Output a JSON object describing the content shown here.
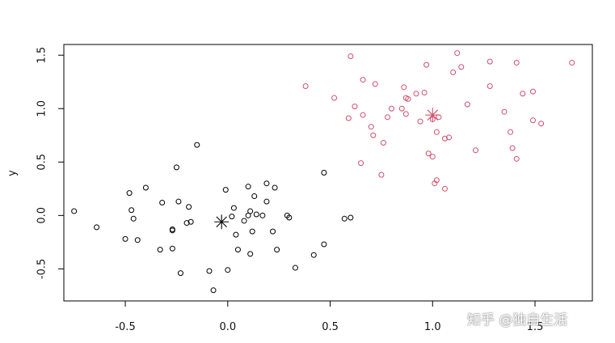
{
  "chart_data": {
    "type": "scatter",
    "title": "",
    "xlabel": "",
    "ylabel": "y",
    "xlim": [
      -0.8,
      1.78
    ],
    "ylim": [
      -0.8,
      1.6
    ],
    "x_ticks": [
      -0.5,
      0.0,
      0.5,
      1.0,
      1.5
    ],
    "x_tick_labels": [
      "-0.5",
      "0.0",
      "0.5",
      "1.0",
      "1.5"
    ],
    "y_ticks": [
      -0.5,
      0.0,
      0.5,
      1.0,
      1.5
    ],
    "y_tick_labels": [
      "-0.5",
      "0.0",
      "0.5",
      "1.0",
      "1.5"
    ],
    "grid": false,
    "legend": "none",
    "series": [
      {
        "color": "#000000",
        "marker": "open-circle",
        "points": [
          [
            -0.75,
            0.04
          ],
          [
            -0.64,
            -0.11
          ],
          [
            -0.5,
            -0.22
          ],
          [
            -0.48,
            0.21
          ],
          [
            -0.47,
            0.05
          ],
          [
            -0.46,
            -0.03
          ],
          [
            -0.44,
            -0.23
          ],
          [
            -0.4,
            0.26
          ],
          [
            -0.33,
            -0.32
          ],
          [
            -0.32,
            0.12
          ],
          [
            -0.27,
            -0.31
          ],
          [
            -0.27,
            -0.13
          ],
          [
            -0.27,
            -0.14
          ],
          [
            -0.25,
            0.45
          ],
          [
            -0.24,
            0.13
          ],
          [
            -0.23,
            -0.54
          ],
          [
            -0.2,
            -0.07
          ],
          [
            -0.19,
            0.08
          ],
          [
            -0.18,
            -0.06
          ],
          [
            -0.15,
            0.66
          ],
          [
            -0.09,
            -0.52
          ],
          [
            -0.07,
            -0.7
          ],
          [
            -0.01,
            0.24
          ],
          [
            0.0,
            -0.51
          ],
          [
            0.02,
            -0.01
          ],
          [
            0.03,
            0.07
          ],
          [
            0.04,
            -0.18
          ],
          [
            0.05,
            -0.32
          ],
          [
            0.08,
            -0.05
          ],
          [
            0.1,
            0.0
          ],
          [
            0.1,
            0.27
          ],
          [
            0.11,
            -0.36
          ],
          [
            0.11,
            0.04
          ],
          [
            0.12,
            -0.15
          ],
          [
            0.13,
            0.18
          ],
          [
            0.14,
            0.01
          ],
          [
            0.17,
            0.0
          ],
          [
            0.19,
            0.13
          ],
          [
            0.19,
            0.3
          ],
          [
            0.22,
            -0.15
          ],
          [
            0.23,
            0.26
          ],
          [
            0.24,
            -0.32
          ],
          [
            0.29,
            0.0
          ],
          [
            0.3,
            -0.02
          ],
          [
            0.33,
            -0.49
          ],
          [
            0.42,
            -0.37
          ],
          [
            0.47,
            0.4
          ],
          [
            0.47,
            -0.27
          ],
          [
            0.57,
            -0.03
          ],
          [
            0.6,
            -0.02
          ]
        ]
      },
      {
        "color": "#d0506a",
        "marker": "open-circle",
        "points": [
          [
            0.38,
            1.21
          ],
          [
            0.52,
            1.1
          ],
          [
            0.59,
            0.91
          ],
          [
            0.6,
            1.49
          ],
          [
            0.62,
            1.02
          ],
          [
            0.65,
            0.49
          ],
          [
            0.66,
            0.94
          ],
          [
            0.66,
            1.27
          ],
          [
            0.7,
            0.83
          ],
          [
            0.71,
            0.75
          ],
          [
            0.72,
            1.23
          ],
          [
            0.75,
            0.38
          ],
          [
            0.76,
            0.68
          ],
          [
            0.78,
            0.92
          ],
          [
            0.8,
            1.0
          ],
          [
            0.85,
            1.0
          ],
          [
            0.86,
            1.2
          ],
          [
            0.87,
            1.1
          ],
          [
            0.87,
            0.95
          ],
          [
            0.88,
            1.09
          ],
          [
            0.92,
            1.14
          ],
          [
            0.94,
            0.88
          ],
          [
            0.96,
            1.15
          ],
          [
            0.97,
            1.41
          ],
          [
            0.98,
            0.58
          ],
          [
            1.0,
            0.9
          ],
          [
            1.0,
            0.55
          ],
          [
            1.01,
            0.3
          ],
          [
            1.02,
            0.78
          ],
          [
            1.02,
            0.33
          ],
          [
            1.03,
            0.92
          ],
          [
            1.06,
            0.25
          ],
          [
            1.06,
            0.72
          ],
          [
            1.08,
            0.73
          ],
          [
            1.1,
            1.34
          ],
          [
            1.12,
            1.52
          ],
          [
            1.14,
            1.39
          ],
          [
            1.17,
            1.04
          ],
          [
            1.21,
            0.61
          ],
          [
            1.28,
            1.44
          ],
          [
            1.28,
            1.21
          ],
          [
            1.35,
            0.97
          ],
          [
            1.38,
            0.78
          ],
          [
            1.39,
            0.63
          ],
          [
            1.41,
            1.43
          ],
          [
            1.41,
            0.53
          ],
          [
            1.44,
            1.14
          ],
          [
            1.49,
            1.16
          ],
          [
            1.49,
            0.89
          ],
          [
            1.53,
            0.86
          ],
          [
            1.68,
            1.43
          ]
        ]
      }
    ],
    "centers": [
      {
        "x": -0.03,
        "y": -0.06,
        "color": "#000000",
        "marker": "asterisk"
      },
      {
        "x": 1.0,
        "y": 0.94,
        "color": "#d0506a",
        "marker": "asterisk"
      }
    ]
  },
  "watermark": "知乎 @独自生活"
}
